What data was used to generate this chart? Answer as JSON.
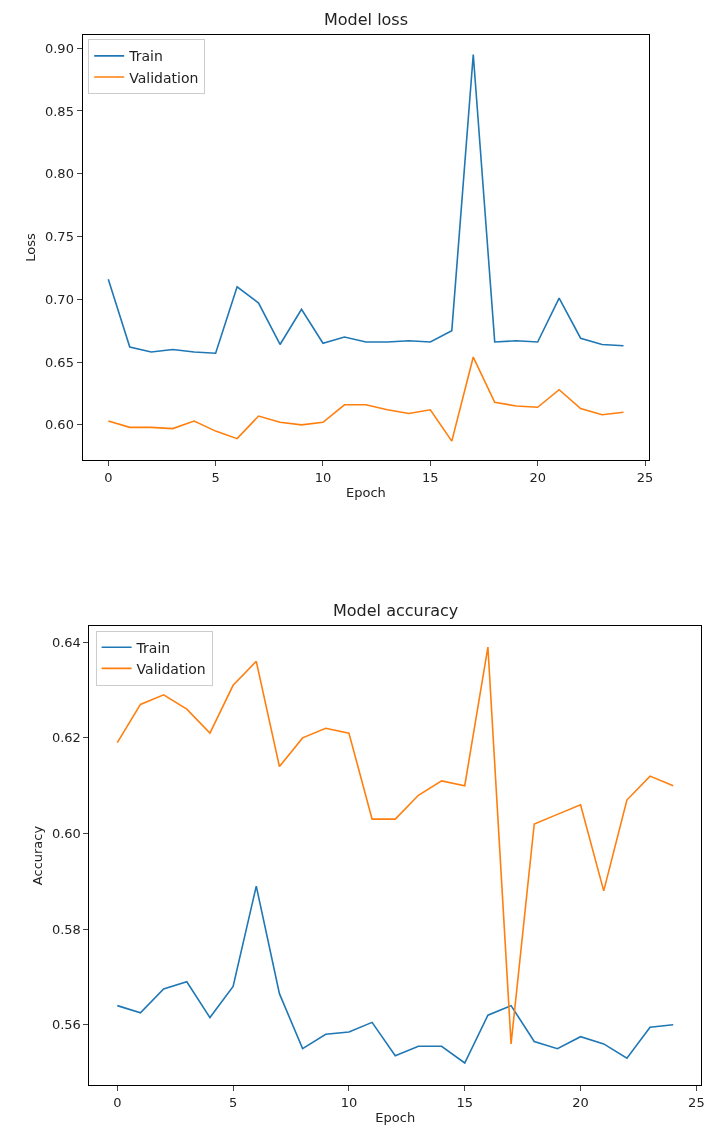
{
  "chart_data": [
    {
      "type": "line",
      "title": "Model loss",
      "xlabel": "Epoch",
      "ylabel": "Loss",
      "x": [
        0,
        1,
        2,
        3,
        4,
        5,
        6,
        7,
        8,
        9,
        10,
        11,
        12,
        13,
        14,
        15,
        16,
        17,
        18,
        19,
        20,
        21,
        22,
        23,
        24
      ],
      "series": [
        {
          "name": "Train",
          "color": "#1f77b4",
          "values": [
            0.716,
            0.662,
            0.658,
            0.66,
            0.658,
            0.657,
            0.71,
            0.697,
            0.664,
            0.692,
            0.665,
            0.67,
            0.666,
            0.666,
            0.667,
            0.666,
            0.675,
            0.895,
            0.666,
            0.667,
            0.666,
            0.701,
            0.669,
            0.664,
            0.663
          ]
        },
        {
          "name": "Validation",
          "color": "#ff7f0e",
          "values": [
            0.603,
            0.598,
            0.598,
            0.597,
            0.603,
            0.595,
            0.589,
            0.607,
            0.602,
            0.6,
            0.602,
            0.616,
            0.616,
            0.612,
            0.609,
            0.612,
            0.587,
            0.654,
            0.618,
            0.615,
            0.614,
            0.628,
            0.613,
            0.608,
            0.61
          ]
        }
      ],
      "xlim": [
        -1.2,
        25.2
      ],
      "xticks": [
        0,
        5,
        10,
        15,
        20,
        25
      ],
      "ylim": [
        0.572,
        0.9105
      ],
      "yticks": [
        {
          "value": 0.6,
          "label": "0.60"
        },
        {
          "value": 0.65,
          "label": "0.65"
        },
        {
          "value": 0.7,
          "label": "0.70"
        },
        {
          "value": 0.75,
          "label": "0.75"
        },
        {
          "value": 0.8,
          "label": "0.80"
        },
        {
          "value": 0.85,
          "label": "0.85"
        },
        {
          "value": 0.9,
          "label": "0.90"
        }
      ],
      "legend": "top left",
      "line_style": "solid"
    },
    {
      "type": "line",
      "title": "Model accuracy",
      "xlabel": "Epoch",
      "ylabel": "Accuracy",
      "x": [
        0,
        1,
        2,
        3,
        4,
        5,
        6,
        7,
        8,
        9,
        10,
        11,
        12,
        13,
        14,
        15,
        16,
        17,
        18,
        19,
        20,
        21,
        22,
        23,
        24
      ],
      "series": [
        {
          "name": "Train",
          "color": "#1f77b4",
          "values": [
            0.564,
            0.5625,
            0.5675,
            0.569,
            0.5615,
            0.568,
            0.589,
            0.5665,
            0.555,
            0.558,
            0.5585,
            0.5605,
            0.5535,
            0.5555,
            0.5555,
            0.552,
            0.562,
            0.564,
            0.5565,
            0.555,
            0.5575,
            0.556,
            0.553,
            0.5595,
            0.56
          ]
        },
        {
          "name": "Validation",
          "color": "#ff7f0e",
          "values": [
            0.619,
            0.627,
            0.629,
            0.626,
            0.621,
            0.631,
            0.636,
            0.614,
            0.62,
            0.622,
            0.621,
            0.603,
            0.603,
            0.608,
            0.611,
            0.61,
            0.639,
            0.556,
            0.602,
            0.604,
            0.606,
            0.588,
            0.607,
            0.612,
            0.61
          ]
        }
      ],
      "xlim": [
        -1.2,
        25.2
      ],
      "xticks": [
        0,
        5,
        10,
        15,
        20,
        25
      ],
      "ylim": [
        0.5474,
        0.6434
      ],
      "yticks": [
        {
          "value": 0.56,
          "label": "0.56"
        },
        {
          "value": 0.58,
          "label": "0.58"
        },
        {
          "value": 0.6,
          "label": "0.60"
        },
        {
          "value": 0.62,
          "label": "0.62"
        },
        {
          "value": 0.64,
          "label": "0.64"
        }
      ],
      "legend": "top left",
      "line_style": "solid"
    }
  ]
}
